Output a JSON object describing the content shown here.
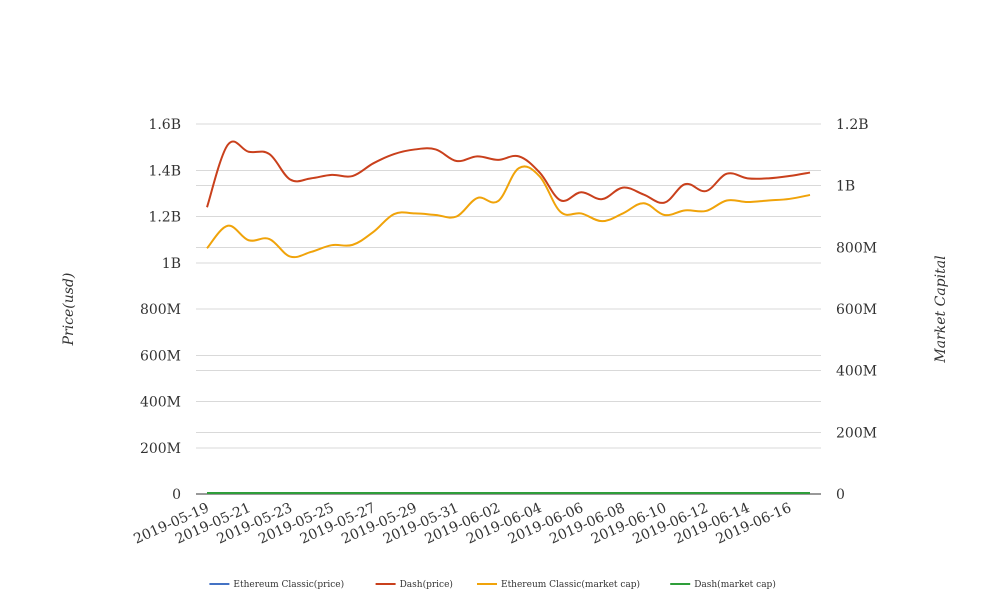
{
  "chart_data": {
    "type": "line",
    "x": [
      "2019-05-19",
      "2019-05-20",
      "2019-05-21",
      "2019-05-22",
      "2019-05-23",
      "2019-05-24",
      "2019-05-25",
      "2019-05-26",
      "2019-05-27",
      "2019-05-28",
      "2019-05-29",
      "2019-05-30",
      "2019-05-31",
      "2019-06-01",
      "2019-06-02",
      "2019-06-03",
      "2019-06-04",
      "2019-06-05",
      "2019-06-06",
      "2019-06-07",
      "2019-06-08",
      "2019-06-09",
      "2019-06-10",
      "2019-06-11",
      "2019-06-12",
      "2019-06-13",
      "2019-06-14",
      "2019-06-15",
      "2019-06-16",
      "2019-06-17"
    ],
    "x_tick_labels": [
      "2019-05-19",
      "2019-05-21",
      "2019-05-23",
      "2019-05-25",
      "2019-05-27",
      "2019-05-29",
      "2019-05-31",
      "2019-06-02",
      "2019-06-04",
      "2019-06-06",
      "2019-06-08",
      "2019-06-10",
      "2019-06-12",
      "2019-06-14",
      "2019-06-16"
    ],
    "y_left": {
      "title": "Price(usd)",
      "range": [
        0,
        1600000000
      ],
      "ticks": [
        0,
        200000000,
        400000000,
        600000000,
        800000000,
        1000000000,
        1200000000,
        1400000000,
        1600000000
      ],
      "tick_labels": [
        "0",
        "200M",
        "400M",
        "600M",
        "800M",
        "1B",
        "1.2B",
        "1.4B",
        "1.6B"
      ]
    },
    "y_right": {
      "title": "Market Capital",
      "range": [
        0,
        1200000000
      ],
      "ticks": [
        0,
        200000000,
        400000000,
        600000000,
        800000000,
        1000000000,
        1200000000
      ],
      "tick_labels": [
        "0",
        "200M",
        "400M",
        "600M",
        "800M",
        "1B",
        "1.2B"
      ]
    },
    "grid": true,
    "legend_position": "bottom",
    "series": [
      {
        "name": "Ethereum Classic(price)",
        "axis": "left",
        "color": "#4472c4",
        "values": [
          6,
          6,
          6,
          6,
          6,
          6,
          6,
          6,
          6,
          6,
          6,
          6,
          6,
          6,
          6,
          6,
          6,
          6,
          6,
          6,
          6,
          6,
          6,
          6,
          6,
          6,
          6,
          6,
          6,
          6
        ]
      },
      {
        "name": "Dash(price)",
        "axis": "left",
        "color": "#c9401c",
        "values": [
          1240000000,
          1510000000,
          1480000000,
          1470000000,
          1360000000,
          1365000000,
          1380000000,
          1375000000,
          1430000000,
          1470000000,
          1490000000,
          1490000000,
          1440000000,
          1460000000,
          1445000000,
          1460000000,
          1390000000,
          1270000000,
          1305000000,
          1275000000,
          1325000000,
          1295000000,
          1260000000,
          1340000000,
          1310000000,
          1385000000,
          1365000000,
          1365000000,
          1375000000,
          1390000000
        ]
      },
      {
        "name": "Ethereum Classic(market cap)",
        "axis": "right",
        "color": "#f0a30a",
        "values": [
          797000000,
          870000000,
          823000000,
          827000000,
          770000000,
          785000000,
          807000000,
          808000000,
          850000000,
          908000000,
          910000000,
          905000000,
          900000000,
          960000000,
          950000000,
          1057000000,
          1030000000,
          915000000,
          910000000,
          885000000,
          910000000,
          943000000,
          905000000,
          920000000,
          918000000,
          952000000,
          947000000,
          952000000,
          957000000,
          970000000
        ]
      },
      {
        "name": "Dash(market cap)",
        "axis": "right",
        "color": "#2e9e3a",
        "values": [
          150,
          150,
          150,
          150,
          150,
          150,
          150,
          150,
          150,
          150,
          150,
          150,
          150,
          150,
          150,
          150,
          150,
          150,
          150,
          150,
          150,
          150,
          150,
          150,
          150,
          150,
          150,
          150,
          150,
          150
        ]
      }
    ]
  }
}
